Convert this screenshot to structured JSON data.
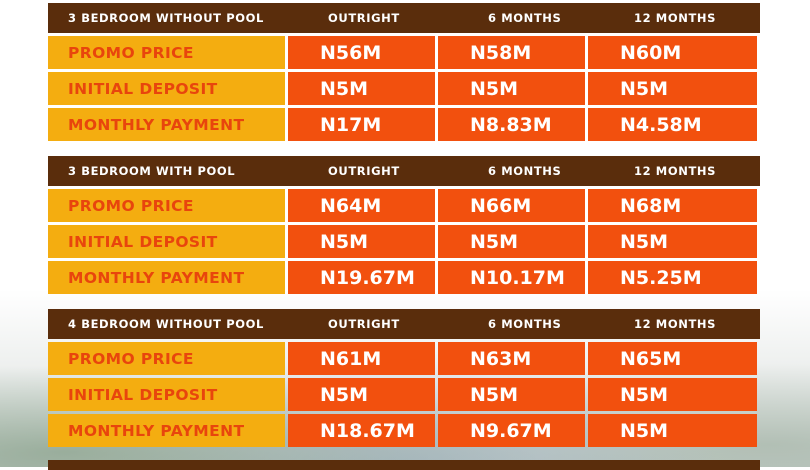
{
  "tables": [
    {
      "title": "3 BEDROOM WITHOUT POOL",
      "columns": [
        "OUTRIGHT",
        "6 MONTHS",
        "12 MONTHS"
      ],
      "rows": [
        {
          "label": "PROMO PRICE",
          "values": [
            "N56M",
            "N58M",
            "N60M"
          ]
        },
        {
          "label": "INITIAL DEPOSIT",
          "values": [
            "N5M",
            "N5M",
            "N5M"
          ]
        },
        {
          "label": "MONTHLY PAYMENT",
          "values": [
            "N17M",
            "N8.83M",
            "N4.58M"
          ]
        }
      ]
    },
    {
      "title": "3 BEDROOM WITH POOL",
      "columns": [
        "OUTRIGHT",
        "6 MONTHS",
        "12 MONTHS"
      ],
      "rows": [
        {
          "label": "PROMO PRICE",
          "values": [
            "N64M",
            "N66M",
            "N68M"
          ]
        },
        {
          "label": "INITIAL DEPOSIT",
          "values": [
            "N5M",
            "N5M",
            "N5M"
          ]
        },
        {
          "label": "MONTHLY PAYMENT",
          "values": [
            "N19.67M",
            "N10.17M",
            "N5.25M"
          ]
        }
      ]
    },
    {
      "title": "4 BEDROOM WITHOUT POOL",
      "columns": [
        "OUTRIGHT",
        "6 MONTHS",
        "12 MONTHS"
      ],
      "rows": [
        {
          "label": "PROMO PRICE",
          "values": [
            "N61M",
            "N63M",
            "N65M"
          ]
        },
        {
          "label": "INITIAL DEPOSIT",
          "values": [
            "N5M",
            "N5M",
            "N5M"
          ]
        },
        {
          "label": "MONTHLY PAYMENT",
          "values": [
            "N18.67M",
            "N9.67M",
            "N5M"
          ]
        }
      ]
    }
  ],
  "colors": {
    "header_bg": "#5a2d0c",
    "label_bg": "#f4ad10",
    "label_text": "#e8450d",
    "value_bg": "#f2500e",
    "value_text": "#ffffff"
  }
}
